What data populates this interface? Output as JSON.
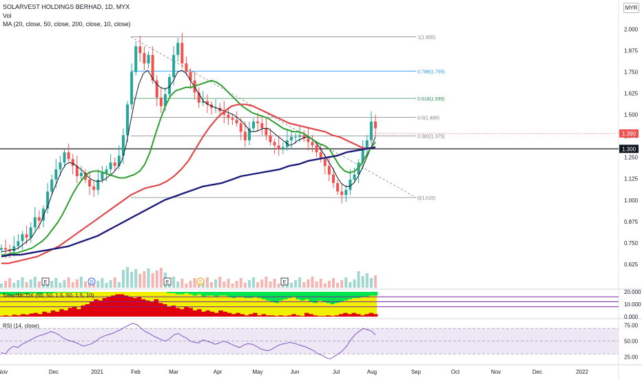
{
  "header": {
    "title": "SOLARVEST HOLDINGS BERHAD, 1D, MYX",
    "vol_label": "Vol",
    "ma_label": "MA (20, close, 50, close, 200, close, 10, close)",
    "currency": "MYR"
  },
  "colors": {
    "up": "#26a69a",
    "down": "#ef5350",
    "ma10": "#131722",
    "ma20": "#2e9f2e",
    "ma50": "#e0484a",
    "ma200": "#1c1b7a",
    "fib": "#787b86",
    "fib_786": "#2196f3",
    "fib_618": "#2e8b57",
    "support": "#131722",
    "current": "#ef5350",
    "mcdx_retailer": "#00e64d",
    "mcdx_hot": "#f0f000",
    "mcdx_banker": "#e0000b",
    "mcdx_line": "#7b1fa2",
    "rsi_line": "#7e57c2",
    "rsi_band": "#ede7f6"
  },
  "chart_data": [
    {
      "type": "candlestick",
      "title": "SOLARVEST HOLDINGS BERHAD, 1D, MYX",
      "x_labels": [
        "Nov",
        "Dec",
        "2021",
        "Feb",
        "Mar",
        "Apr",
        "May",
        "Jun",
        "Jul",
        "Aug",
        "Sep",
        "Oct",
        "Nov",
        "Dec",
        "2022"
      ],
      "ylim": [
        0.56,
        2.01
      ],
      "y_ticks": [
        "2.000",
        "1.875",
        "1.750",
        "1.625",
        "1.500",
        "1.375",
        "1.250",
        "1.125",
        "1.000",
        "0.875",
        "0.750",
        "0.625"
      ],
      "price_series": [
        0.72,
        0.71,
        0.7,
        0.73,
        0.76,
        0.8,
        0.78,
        0.84,
        0.9,
        0.88,
        0.95,
        1.05,
        1.12,
        1.18,
        1.22,
        1.28,
        1.24,
        1.2,
        1.14,
        1.16,
        1.12,
        1.08,
        1.06,
        1.12,
        1.16,
        1.18,
        1.22,
        1.2,
        1.26,
        1.38,
        1.56,
        1.75,
        1.9,
        1.86,
        1.8,
        1.85,
        1.7,
        1.6,
        1.55,
        1.62,
        1.72,
        1.85,
        1.92,
        1.8,
        1.75,
        1.7,
        1.63,
        1.57,
        1.58,
        1.56,
        1.54,
        1.54,
        1.52,
        1.5,
        1.48,
        1.47,
        1.45,
        1.4,
        1.35,
        1.42,
        1.46,
        1.45,
        1.42,
        1.38,
        1.34,
        1.32,
        1.3,
        1.31,
        1.35,
        1.37,
        1.37,
        1.38,
        1.36,
        1.34,
        1.32,
        1.28,
        1.24,
        1.2,
        1.15,
        1.1,
        1.05,
        1.03,
        1.06,
        1.12,
        1.15,
        1.22,
        1.3,
        1.35,
        1.46,
        1.42
      ],
      "price_end": 1.39,
      "series": [
        {
          "name": "MA 10",
          "values": [
            0.7,
            0.7,
            0.71,
            0.71,
            0.72,
            0.74,
            0.76,
            0.78,
            0.82,
            0.86,
            0.92,
            0.98,
            1.05,
            1.11,
            1.17,
            1.21,
            1.22,
            1.21,
            1.19,
            1.17,
            1.14,
            1.12,
            1.11,
            1.11,
            1.12,
            1.14,
            1.16,
            1.19,
            1.23,
            1.32,
            1.45,
            1.58,
            1.68,
            1.74,
            1.76,
            1.72,
            1.68,
            1.66,
            1.65,
            1.66,
            1.7,
            1.75,
            1.76,
            1.74,
            1.7,
            1.66,
            1.62,
            1.58,
            1.56,
            1.55,
            1.54,
            1.53,
            1.52,
            1.51,
            1.5,
            1.48,
            1.46,
            1.43,
            1.4,
            1.4,
            1.41,
            1.42,
            1.42,
            1.4,
            1.38,
            1.36,
            1.34,
            1.32,
            1.33,
            1.35,
            1.36,
            1.37,
            1.36,
            1.34,
            1.31,
            1.27,
            1.23,
            1.19,
            1.14,
            1.1,
            1.08,
            1.08,
            1.1,
            1.14,
            1.19,
            1.25,
            1.31,
            1.37
          ]
        },
        {
          "name": "MA 20",
          "values": [
            0.68,
            0.68,
            0.69,
            0.69,
            0.7,
            0.71,
            0.72,
            0.74,
            0.76,
            0.79,
            0.83,
            0.87,
            0.92,
            0.98,
            1.04,
            1.09,
            1.13,
            1.16,
            1.17,
            1.17,
            1.16,
            1.15,
            1.14,
            1.13,
            1.13,
            1.14,
            1.15,
            1.17,
            1.21,
            1.28,
            1.38,
            1.47,
            1.55,
            1.61,
            1.64,
            1.65,
            1.66,
            1.66,
            1.67,
            1.68,
            1.69,
            1.7,
            1.69,
            1.67,
            1.64,
            1.61,
            1.58,
            1.55,
            1.53,
            1.51,
            1.5,
            1.49,
            1.48,
            1.46,
            1.44,
            1.42,
            1.41,
            1.4,
            1.4,
            1.39,
            1.37,
            1.35,
            1.33,
            1.32,
            1.3,
            1.25,
            1.2,
            1.17,
            1.16,
            1.17,
            1.2,
            1.25,
            1.3,
            1.34
          ]
        },
        {
          "name": "MA 50",
          "values": [
            0.63,
            0.63,
            0.64,
            0.65,
            0.66,
            0.67,
            0.69,
            0.71,
            0.73,
            0.76,
            0.79,
            0.82,
            0.85,
            0.88,
            0.91,
            0.94,
            0.97,
            1.0,
            1.03,
            1.05,
            1.07,
            1.08,
            1.09,
            1.11,
            1.14,
            1.18,
            1.23,
            1.3,
            1.37,
            1.43,
            1.48,
            1.52,
            1.55,
            1.56,
            1.56,
            1.55,
            1.53,
            1.51,
            1.49,
            1.47,
            1.45,
            1.44,
            1.43,
            1.42,
            1.41,
            1.4,
            1.38,
            1.37,
            1.35,
            1.33,
            1.31,
            1.3,
            1.31
          ]
        },
        {
          "name": "MA 200",
          "values": [
            0.67,
            0.68,
            0.68,
            0.69,
            0.7,
            0.71,
            0.72,
            0.73,
            0.75,
            0.77,
            0.79,
            0.82,
            0.85,
            0.88,
            0.91,
            0.94,
            0.97,
            1.0,
            1.02,
            1.04,
            1.06,
            1.08,
            1.09,
            1.1,
            1.12,
            1.14,
            1.15,
            1.16,
            1.17,
            1.18,
            1.2,
            1.21,
            1.23,
            1.24,
            1.25,
            1.26,
            1.28,
            1.29,
            1.3,
            1.31
          ]
        }
      ],
      "fib_levels": [
        {
          "ratio": "1",
          "value": 1.955,
          "label": "1(1.955)"
        },
        {
          "ratio": "0.786",
          "value": 1.755,
          "label": "0.786(1.755)"
        },
        {
          "ratio": "0.618",
          "value": 1.595,
          "label": "0.618(1.595)"
        },
        {
          "ratio": "0.5",
          "value": 1.485,
          "label": "0.5(1.485)"
        },
        {
          "ratio": "0.382",
          "value": 1.375,
          "label": "0.382(1.375)"
        },
        {
          "ratio": "0",
          "value": 1.015,
          "label": "0(1.015)"
        }
      ],
      "support_level": 1.3,
      "support_label": "1.300",
      "current_price_label": "1.390",
      "event_markers": [
        "E",
        "D",
        "E",
        "S",
        "E"
      ]
    },
    {
      "type": "bar",
      "title": "SmartMCDX (50, 50, 1.5, 50, 1.5, 10)",
      "y_ticks": [
        "20.000",
        "10.000",
        "0.000"
      ],
      "ylim": [
        0,
        20
      ],
      "banker_series": [
        0.5,
        1,
        0.5,
        1.5,
        1,
        2,
        1.5,
        2.5,
        3,
        2,
        4,
        3,
        5,
        4,
        6,
        5,
        7,
        8,
        6,
        9,
        10,
        12,
        14,
        13,
        15,
        16,
        17,
        18,
        18,
        17,
        16,
        15,
        16,
        14,
        13,
        12,
        14,
        11,
        10,
        8,
        9,
        7,
        6,
        8,
        7,
        5,
        6,
        4,
        5,
        4,
        3,
        5,
        4,
        3,
        2,
        3,
        2,
        1,
        2,
        3,
        1,
        2,
        1,
        1,
        0.5,
        1,
        0.5,
        1,
        2,
        1,
        0.5,
        3,
        2,
        1,
        0.5,
        0.5,
        1,
        0.5,
        1,
        2,
        3,
        2,
        3,
        2,
        1,
        2,
        3,
        2
      ],
      "retailer_series": [
        2,
        2,
        3,
        2,
        2,
        1,
        2,
        1,
        1,
        2,
        1,
        1,
        1,
        0.5,
        0.5,
        0.5,
        0.5,
        0.5,
        0.5,
        0.5,
        0.5,
        0,
        0,
        0,
        0,
        0,
        0,
        0,
        0,
        0,
        0,
        0,
        0,
        0,
        0,
        0,
        0,
        0,
        0,
        1,
        1,
        2,
        2,
        1,
        2,
        3,
        2,
        4,
        3,
        3,
        4,
        3,
        3,
        4,
        5,
        4,
        4,
        5,
        5,
        4,
        5,
        6,
        7,
        8,
        9,
        7,
        6,
        5,
        4,
        6,
        7,
        6,
        8,
        9,
        7,
        8,
        9,
        10,
        9,
        8,
        7,
        6,
        5,
        5,
        4,
        4,
        3,
        3
      ],
      "reference_levels": [
        16,
        12,
        8
      ]
    },
    {
      "type": "line",
      "title": "RSI (14, close)",
      "y_ticks": [
        "75.00",
        "50.00",
        "25.00"
      ],
      "ylim": [
        15,
        82
      ],
      "bands": [
        70,
        50,
        30
      ],
      "values": [
        32,
        30,
        38,
        42,
        40,
        45,
        48,
        52,
        55,
        58,
        60,
        62,
        65,
        63,
        60,
        55,
        52,
        50,
        48,
        45,
        42,
        44,
        46,
        50,
        55,
        58,
        60,
        62,
        65,
        68,
        72,
        75,
        78,
        76,
        70,
        65,
        62,
        58,
        55,
        52,
        50,
        54,
        60,
        62,
        58,
        55,
        50,
        48,
        47,
        52,
        50,
        48,
        45,
        47,
        50,
        48,
        45,
        42,
        40,
        44,
        46,
        45,
        42,
        38,
        36,
        35,
        38,
        42,
        45,
        46,
        48,
        47,
        45,
        43,
        41,
        38,
        35,
        30,
        28,
        24,
        22,
        26,
        30,
        35,
        42,
        52,
        60,
        65,
        70,
        68,
        66,
        60
      ]
    }
  ]
}
